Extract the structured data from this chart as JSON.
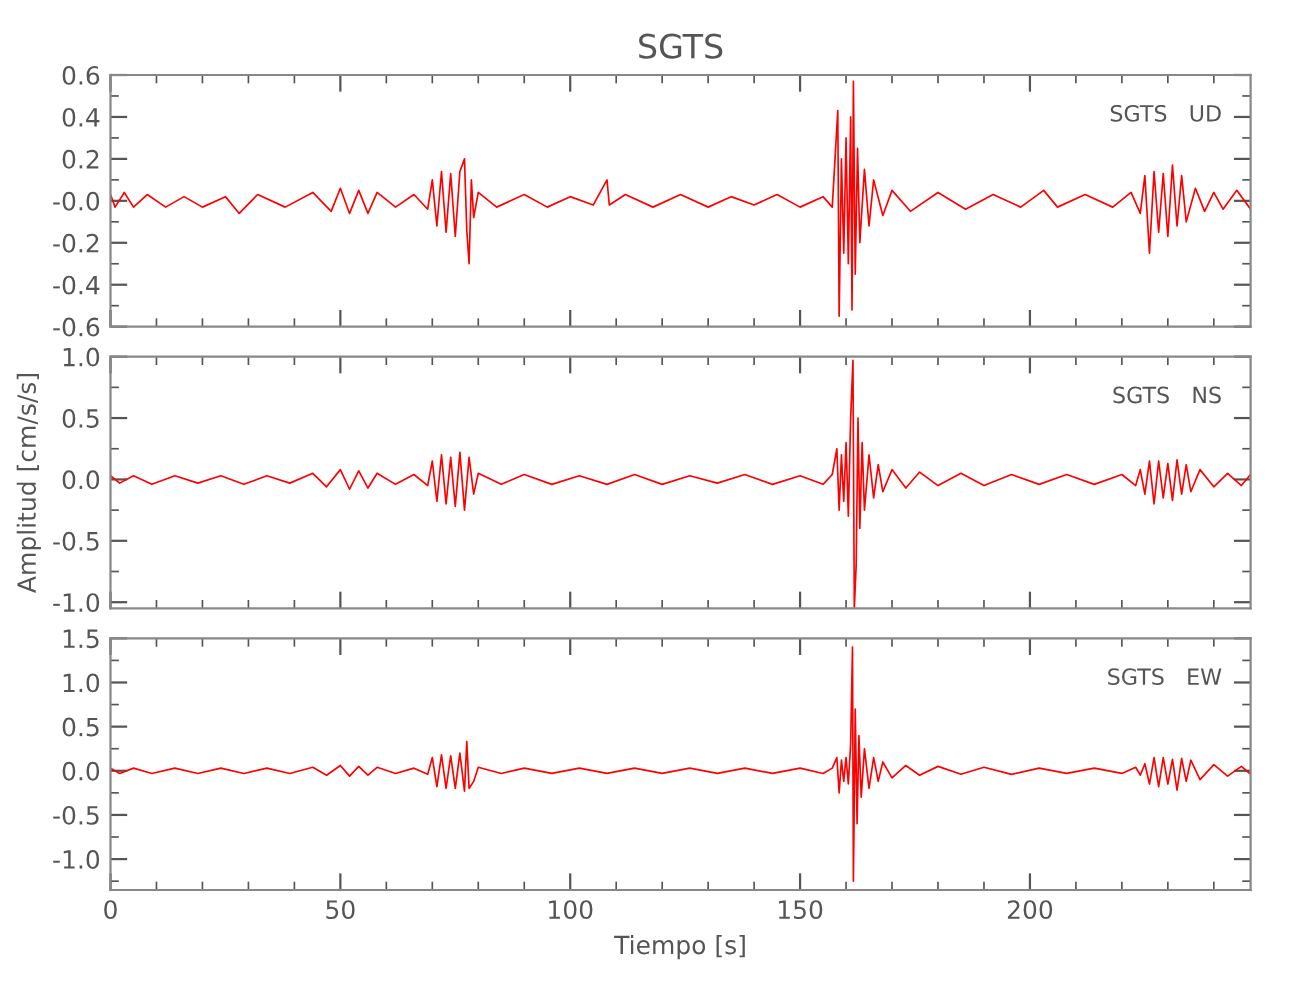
{
  "chart_data": [
    {
      "type": "line",
      "title": "SGTS",
      "annotations": [
        "SGTS   UD"
      ],
      "xlim": [
        0,
        248
      ],
      "xticks": [
        0,
        50,
        100,
        150,
        200
      ],
      "ylim": [
        -0.6,
        0.6
      ],
      "yticks": [
        -0.6,
        -0.4,
        -0.2,
        {
          "value": 0,
          "label": "-0.0"
        },
        0.2,
        0.4,
        0.6
      ],
      "tick_labels": "y",
      "grid": false,
      "series": [
        {
          "color": "#ff0000",
          "x": [
            0,
            1,
            3,
            5,
            8,
            12,
            16,
            20,
            25,
            28,
            32,
            38,
            44,
            48,
            50,
            52,
            54,
            56,
            58,
            62,
            66,
            69,
            70,
            71,
            72,
            73,
            74,
            75,
            76,
            77,
            77.5,
            78,
            78.5,
            79,
            80,
            84,
            90,
            95,
            100,
            105,
            108,
            108.5,
            112,
            118,
            124,
            130,
            135,
            140,
            145,
            150,
            155,
            157,
            158.2,
            158.5,
            159,
            159.5,
            160,
            160.5,
            161,
            161.3,
            161.6,
            162,
            162.5,
            163,
            164,
            165,
            166,
            168,
            170,
            174,
            180,
            186,
            192,
            198,
            203,
            206,
            212,
            218,
            222,
            224,
            225,
            226,
            227,
            228,
            229,
            230,
            231,
            232,
            233,
            234,
            236,
            238,
            240,
            242,
            245,
            248
          ],
          "values": [
            0.03,
            -0.03,
            0.04,
            -0.03,
            0.03,
            -0.03,
            0.02,
            -0.03,
            0.02,
            -0.06,
            0.03,
            -0.03,
            0.04,
            -0.05,
            0.06,
            -0.06,
            0.05,
            -0.06,
            0.04,
            -0.03,
            0.03,
            -0.04,
            0.1,
            -0.12,
            0.14,
            -0.15,
            0.13,
            -0.17,
            0.14,
            0.2,
            -0.14,
            -0.3,
            0.1,
            -0.08,
            0.04,
            -0.03,
            0.03,
            -0.03,
            0.02,
            -0.02,
            0.1,
            -0.02,
            0.03,
            -0.03,
            0.03,
            -0.03,
            0.02,
            -0.02,
            0.03,
            -0.03,
            0.02,
            -0.03,
            0.43,
            -0.55,
            0.2,
            -0.25,
            0.3,
            -0.3,
            0.4,
            -0.52,
            0.57,
            -0.35,
            0.25,
            -0.2,
            0.15,
            -0.12,
            0.1,
            -0.07,
            0.05,
            -0.05,
            0.04,
            -0.04,
            0.03,
            -0.03,
            0.05,
            -0.03,
            0.03,
            -0.03,
            0.04,
            -0.06,
            0.12,
            -0.25,
            0.14,
            -0.15,
            0.13,
            -0.17,
            0.17,
            -0.12,
            0.12,
            -0.1,
            0.06,
            -0.05,
            0.04,
            -0.04,
            0.05,
            -0.04
          ]
        }
      ]
    },
    {
      "type": "line",
      "ylabel": "Amplitud [cm/s/s]",
      "annotations": [
        "SGTS   NS"
      ],
      "xlim": [
        0,
        248
      ],
      "xticks": [
        0,
        50,
        100,
        150,
        200
      ],
      "ylim": [
        -1.05,
        1.0
      ],
      "yticks": [
        {
          "value": -1.0,
          "label": "-1.0"
        },
        -0.5,
        {
          "value": 0,
          "label": "0.0"
        },
        0.5,
        {
          "value": 1.0,
          "label": "1.0"
        }
      ],
      "tick_labels": "y",
      "grid": false,
      "series": [
        {
          "color": "#ff0000",
          "x": [
            0,
            2,
            5,
            9,
            14,
            19,
            24,
            29,
            34,
            39,
            44,
            47,
            50,
            52,
            54,
            56,
            58,
            62,
            66,
            69,
            70,
            71,
            72,
            73,
            74,
            75,
            76,
            77,
            78,
            79,
            80,
            85,
            90,
            96,
            102,
            108,
            114,
            120,
            126,
            132,
            138,
            144,
            150,
            155,
            157,
            158,
            158.5,
            159,
            159.5,
            160,
            160.5,
            161,
            161.5,
            161.8,
            162.2,
            162.6,
            163,
            163.5,
            164,
            165,
            166,
            167,
            168,
            170,
            173,
            176,
            180,
            185,
            190,
            196,
            202,
            208,
            214,
            220,
            223,
            224,
            225,
            226,
            227,
            228,
            229,
            230,
            231,
            232,
            233,
            234,
            235,
            237,
            240,
            243,
            246,
            248
          ],
          "values": [
            0.03,
            -0.03,
            0.03,
            -0.04,
            0.03,
            -0.03,
            0.03,
            -0.04,
            0.03,
            -0.03,
            0.05,
            -0.06,
            0.08,
            -0.08,
            0.07,
            -0.07,
            0.05,
            -0.04,
            0.04,
            -0.05,
            0.15,
            -0.18,
            0.2,
            -0.2,
            0.18,
            -0.22,
            0.22,
            -0.25,
            0.18,
            -0.12,
            0.05,
            -0.04,
            0.04,
            -0.04,
            0.03,
            -0.04,
            0.04,
            -0.04,
            0.03,
            -0.03,
            0.04,
            -0.04,
            0.03,
            -0.04,
            0.04,
            0.25,
            -0.25,
            0.2,
            -0.18,
            0.3,
            -0.3,
            0.5,
            0.97,
            -1.05,
            -0.7,
            0.5,
            -0.4,
            0.3,
            -0.25,
            0.2,
            -0.15,
            0.12,
            -0.1,
            0.08,
            -0.07,
            0.06,
            -0.05,
            0.05,
            -0.05,
            0.04,
            -0.04,
            0.04,
            -0.04,
            0.04,
            -0.05,
            0.08,
            -0.12,
            0.15,
            -0.2,
            0.15,
            -0.15,
            0.13,
            -0.17,
            0.16,
            -0.12,
            0.12,
            -0.1,
            0.08,
            -0.06,
            0.05,
            -0.05,
            0.04
          ]
        }
      ]
    },
    {
      "type": "line",
      "xlabel": "Tiempo [s]",
      "annotations": [
        "SGTS   EW"
      ],
      "xlim": [
        0,
        248
      ],
      "xticks": [
        0,
        50,
        100,
        150,
        200
      ],
      "ylim": [
        -1.35,
        1.5
      ],
      "yticks": [
        {
          "value": -1.0,
          "label": "-1.0"
        },
        -0.5,
        {
          "value": 0,
          "label": "0.0"
        },
        0.5,
        {
          "value": 1.0,
          "label": "1.0"
        },
        1.5
      ],
      "grid": false,
      "series": [
        {
          "color": "#ff0000",
          "x": [
            0,
            2,
            5,
            9,
            14,
            19,
            24,
            29,
            34,
            39,
            44,
            47,
            50,
            52,
            54,
            56,
            58,
            62,
            66,
            69,
            70,
            71,
            72,
            73,
            74,
            75,
            76,
            77,
            77.5,
            78,
            79,
            80,
            85,
            90,
            96,
            102,
            108,
            114,
            120,
            126,
            132,
            138,
            144,
            150,
            155,
            157,
            158,
            158.5,
            159,
            159.5,
            160,
            160.5,
            161,
            161.4,
            161.6,
            162,
            162.4,
            162.8,
            163.3,
            164,
            165,
            166,
            167,
            168,
            170,
            173,
            176,
            180,
            185,
            190,
            196,
            202,
            208,
            214,
            220,
            223,
            224,
            225,
            226,
            227,
            228,
            229,
            230,
            231,
            232,
            233,
            234,
            235,
            237,
            240,
            243,
            246,
            248
          ],
          "values": [
            0.03,
            -0.03,
            0.03,
            -0.03,
            0.03,
            -0.03,
            0.03,
            -0.03,
            0.03,
            -0.03,
            0.04,
            -0.05,
            0.06,
            -0.06,
            0.05,
            -0.05,
            0.04,
            -0.03,
            0.03,
            -0.04,
            0.15,
            -0.18,
            0.18,
            -0.2,
            0.17,
            -0.2,
            0.2,
            -0.23,
            0.33,
            -0.2,
            -0.12,
            0.04,
            -0.03,
            0.03,
            -0.03,
            0.03,
            -0.03,
            0.03,
            -0.03,
            0.03,
            -0.03,
            0.03,
            -0.03,
            0.03,
            -0.03,
            0.03,
            0.15,
            -0.25,
            0.12,
            -0.12,
            0.15,
            -0.15,
            0.3,
            1.4,
            -1.25,
            0.7,
            -0.6,
            0.4,
            -0.3,
            0.25,
            -0.2,
            0.15,
            -0.12,
            0.1,
            -0.08,
            0.06,
            -0.05,
            0.05,
            -0.04,
            0.04,
            -0.04,
            0.03,
            -0.03,
            0.03,
            -0.03,
            0.04,
            -0.05,
            0.08,
            -0.15,
            0.15,
            -0.18,
            0.15,
            -0.15,
            0.13,
            -0.22,
            0.14,
            -0.12,
            0.12,
            -0.1,
            0.07,
            -0.06,
            0.05,
            -0.04
          ]
        }
      ]
    }
  ]
}
